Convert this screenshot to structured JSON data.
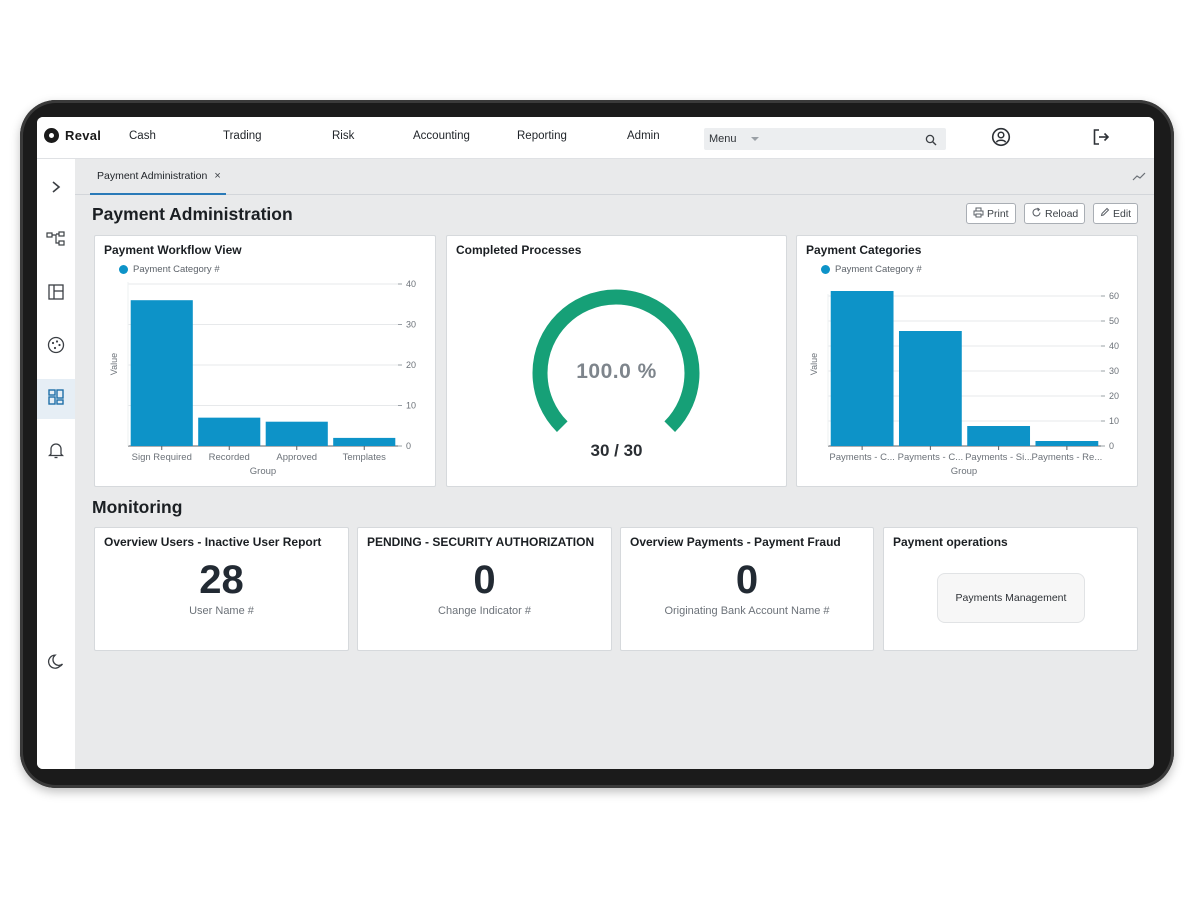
{
  "brand": {
    "name": "Reval"
  },
  "nav": {
    "items": [
      "Cash",
      "Trading",
      "Risk",
      "Accounting",
      "Reporting",
      "Admin"
    ]
  },
  "menu": {
    "label": "Menu"
  },
  "tab": {
    "label": "Payment Administration",
    "close": "×"
  },
  "page": {
    "title": "Payment Administration"
  },
  "actions": {
    "print": "Print",
    "reload": "Reload",
    "edit": "Edit"
  },
  "colors": {
    "accent": "#0d93c8",
    "gauge": "#16a077",
    "tab_underline": "#2a7ab8"
  },
  "icons": {
    "rail": [
      "chevron-right-icon",
      "workflow-icon",
      "layout-icon",
      "palette-icon",
      "dashboard-icon",
      "bell-icon",
      "moon-icon"
    ],
    "top": [
      "search-icon",
      "user-icon",
      "logout-icon",
      "trend-icon"
    ]
  },
  "workflow": {
    "title": "Payment Workflow View",
    "legend": "Payment Category #",
    "xlabel": "Group",
    "ylabel": "Value"
  },
  "completed": {
    "title": "Completed Processes",
    "percent_label": "100.0 %",
    "count_label": "30 / 30"
  },
  "categories": {
    "title": "Payment Categories",
    "legend": "Payment Category #",
    "xlabel": "Group",
    "ylabel": "Value"
  },
  "chart_data": [
    {
      "type": "bar",
      "title": "Payment Workflow View",
      "categories": [
        "Sign Required",
        "Recorded",
        "Approved",
        "Templates"
      ],
      "series": [
        {
          "name": "Payment Category #",
          "values": [
            36,
            7,
            6,
            2
          ]
        }
      ],
      "xlabel": "Group",
      "ylabel": "Value",
      "ylim": [
        0,
        40
      ],
      "yticks": [
        0,
        10,
        20,
        30,
        40
      ],
      "legend": "top-left",
      "grid": true
    },
    {
      "type": "bar",
      "title": "Payment Categories",
      "categories": [
        "Payments - C...",
        "Payments - C...",
        "Payments - Si...",
        "Payments - Re..."
      ],
      "series": [
        {
          "name": "Payment Category #",
          "values": [
            62,
            46,
            8,
            2
          ]
        }
      ],
      "xlabel": "Group",
      "ylabel": "Value",
      "ylim": [
        0,
        60
      ],
      "yticks": [
        0,
        10,
        20,
        30,
        40,
        50,
        60
      ],
      "legend": "top-left",
      "grid": true
    },
    {
      "type": "gauge",
      "title": "Completed Processes",
      "value": 30,
      "max": 30,
      "percent": 100.0
    }
  ],
  "monitoring": {
    "title": "Monitoring",
    "cards": [
      {
        "title": "Overview Users - Inactive User Report",
        "value": "28",
        "sub": "User Name #"
      },
      {
        "title": "PENDING - SECURITY AUTHORIZATION",
        "value": "0",
        "sub": "Change Indicator #"
      },
      {
        "title": "Overview Payments - Payment Fraud",
        "value": "0",
        "sub": "Originating Bank Account Name #"
      }
    ],
    "operations": {
      "title": "Payment operations",
      "button": "Payments Management"
    }
  }
}
